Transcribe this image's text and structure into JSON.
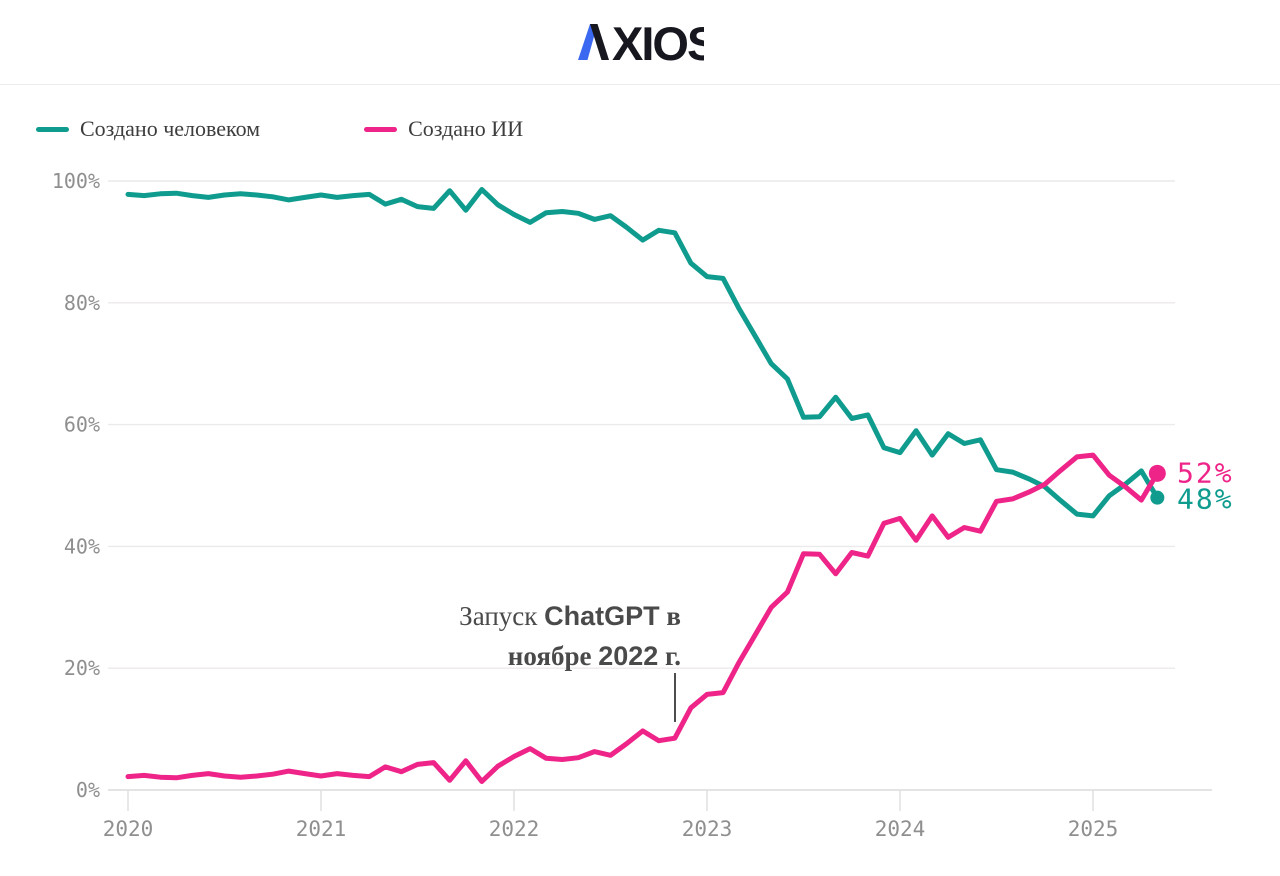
{
  "header": {
    "logo_text": "AXIOS",
    "logo_blue": "#3a68f0",
    "logo_dark": "#17171f"
  },
  "legend": [
    {
      "label": "Создано человеком",
      "color": "#0f9c8e"
    },
    {
      "label": "Создано ИИ",
      "color": "#ee2489"
    }
  ],
  "chart_data": {
    "type": "line",
    "x_unit": "month",
    "x_start": "2020-01",
    "x_end": "2025-05",
    "xticks": [
      "2020",
      "2021",
      "2022",
      "2023",
      "2024",
      "2025"
    ],
    "yticks": [
      "0%",
      "20%",
      "40%",
      "60%",
      "80%",
      "100%"
    ],
    "ylim": [
      0,
      100
    ],
    "grid": "horizontal",
    "legend_position": "top-left",
    "months": [
      "2020-01",
      "2020-02",
      "2020-03",
      "2020-04",
      "2020-05",
      "2020-06",
      "2020-07",
      "2020-08",
      "2020-09",
      "2020-10",
      "2020-11",
      "2020-12",
      "2021-01",
      "2021-02",
      "2021-03",
      "2021-04",
      "2021-05",
      "2021-06",
      "2021-07",
      "2021-08",
      "2021-09",
      "2021-10",
      "2021-11",
      "2021-12",
      "2022-01",
      "2022-02",
      "2022-03",
      "2022-04",
      "2022-05",
      "2022-06",
      "2022-07",
      "2022-08",
      "2022-09",
      "2022-10",
      "2022-11",
      "2022-12",
      "2023-01",
      "2023-02",
      "2023-03",
      "2023-04",
      "2023-05",
      "2023-06",
      "2023-07",
      "2023-08",
      "2023-09",
      "2023-10",
      "2023-11",
      "2023-12",
      "2024-01",
      "2024-02",
      "2024-03",
      "2024-04",
      "2024-05",
      "2024-06",
      "2024-07",
      "2024-08",
      "2024-09",
      "2024-10",
      "2024-11",
      "2024-12",
      "2025-01",
      "2025-02",
      "2025-03",
      "2025-04",
      "2025-05"
    ],
    "series": [
      {
        "name": "Создано человеком",
        "color": "#0f9c8e",
        "values": [
          97.8,
          97.6,
          97.9,
          98.0,
          97.6,
          97.3,
          97.7,
          97.9,
          97.7,
          97.4,
          96.9,
          97.3,
          97.7,
          97.3,
          97.6,
          97.8,
          96.2,
          97.0,
          95.8,
          95.5,
          98.4,
          95.2,
          98.6,
          96.1,
          94.5,
          93.2,
          94.8,
          95.0,
          94.7,
          93.7,
          94.3,
          92.4,
          90.3,
          91.9,
          91.5,
          86.5,
          84.3,
          84.0,
          79.0,
          74.5,
          70.0,
          67.5,
          61.2,
          61.3,
          64.5,
          61.0,
          61.6,
          56.2,
          55.4,
          59.0,
          55.0,
          58.5,
          56.9,
          57.5,
          52.6,
          52.2,
          51.1,
          49.8,
          47.5,
          45.3,
          45.0,
          48.3,
          50.2,
          52.4,
          48.0
        ]
      },
      {
        "name": "Создано ИИ",
        "color": "#ee2489",
        "values": [
          2.2,
          2.4,
          2.1,
          2.0,
          2.4,
          2.7,
          2.3,
          2.1,
          2.3,
          2.6,
          3.1,
          2.7,
          2.3,
          2.7,
          2.4,
          2.2,
          3.8,
          3.0,
          4.2,
          4.5,
          1.6,
          4.8,
          1.4,
          3.9,
          5.5,
          6.8,
          5.2,
          5.0,
          5.3,
          6.3,
          5.7,
          7.6,
          9.7,
          8.1,
          8.5,
          13.5,
          15.7,
          16.0,
          21.0,
          25.5,
          30.0,
          32.5,
          38.8,
          38.7,
          35.5,
          39.0,
          38.4,
          43.8,
          44.6,
          41.0,
          45.0,
          41.5,
          43.1,
          42.5,
          47.4,
          47.8,
          48.9,
          50.2,
          52.5,
          54.7,
          55.0,
          51.7,
          49.8,
          47.6,
          52.0
        ]
      }
    ],
    "end_labels": [
      {
        "text": "52%",
        "color": "#ee2489",
        "series": "Создано ИИ"
      },
      {
        "text": "48%",
        "color": "#0f9c8e",
        "series": "Создано человеком"
      }
    ],
    "annotation": {
      "line1": [
        {
          "t": "Запуск "
        },
        {
          "t": "ChatGPT"
        },
        {
          "t": " в"
        }
      ],
      "line2": [
        {
          "t": "ноябре "
        },
        {
          "t": "2022"
        },
        {
          "t": " г."
        }
      ],
      "anchor_x": "2022-11"
    },
    "colors": {
      "gridline": "#eceaea",
      "axis_line": "#dcdcdc",
      "tick_label": "#8f8f8f",
      "annotation_text": "#4a4a4a"
    }
  }
}
